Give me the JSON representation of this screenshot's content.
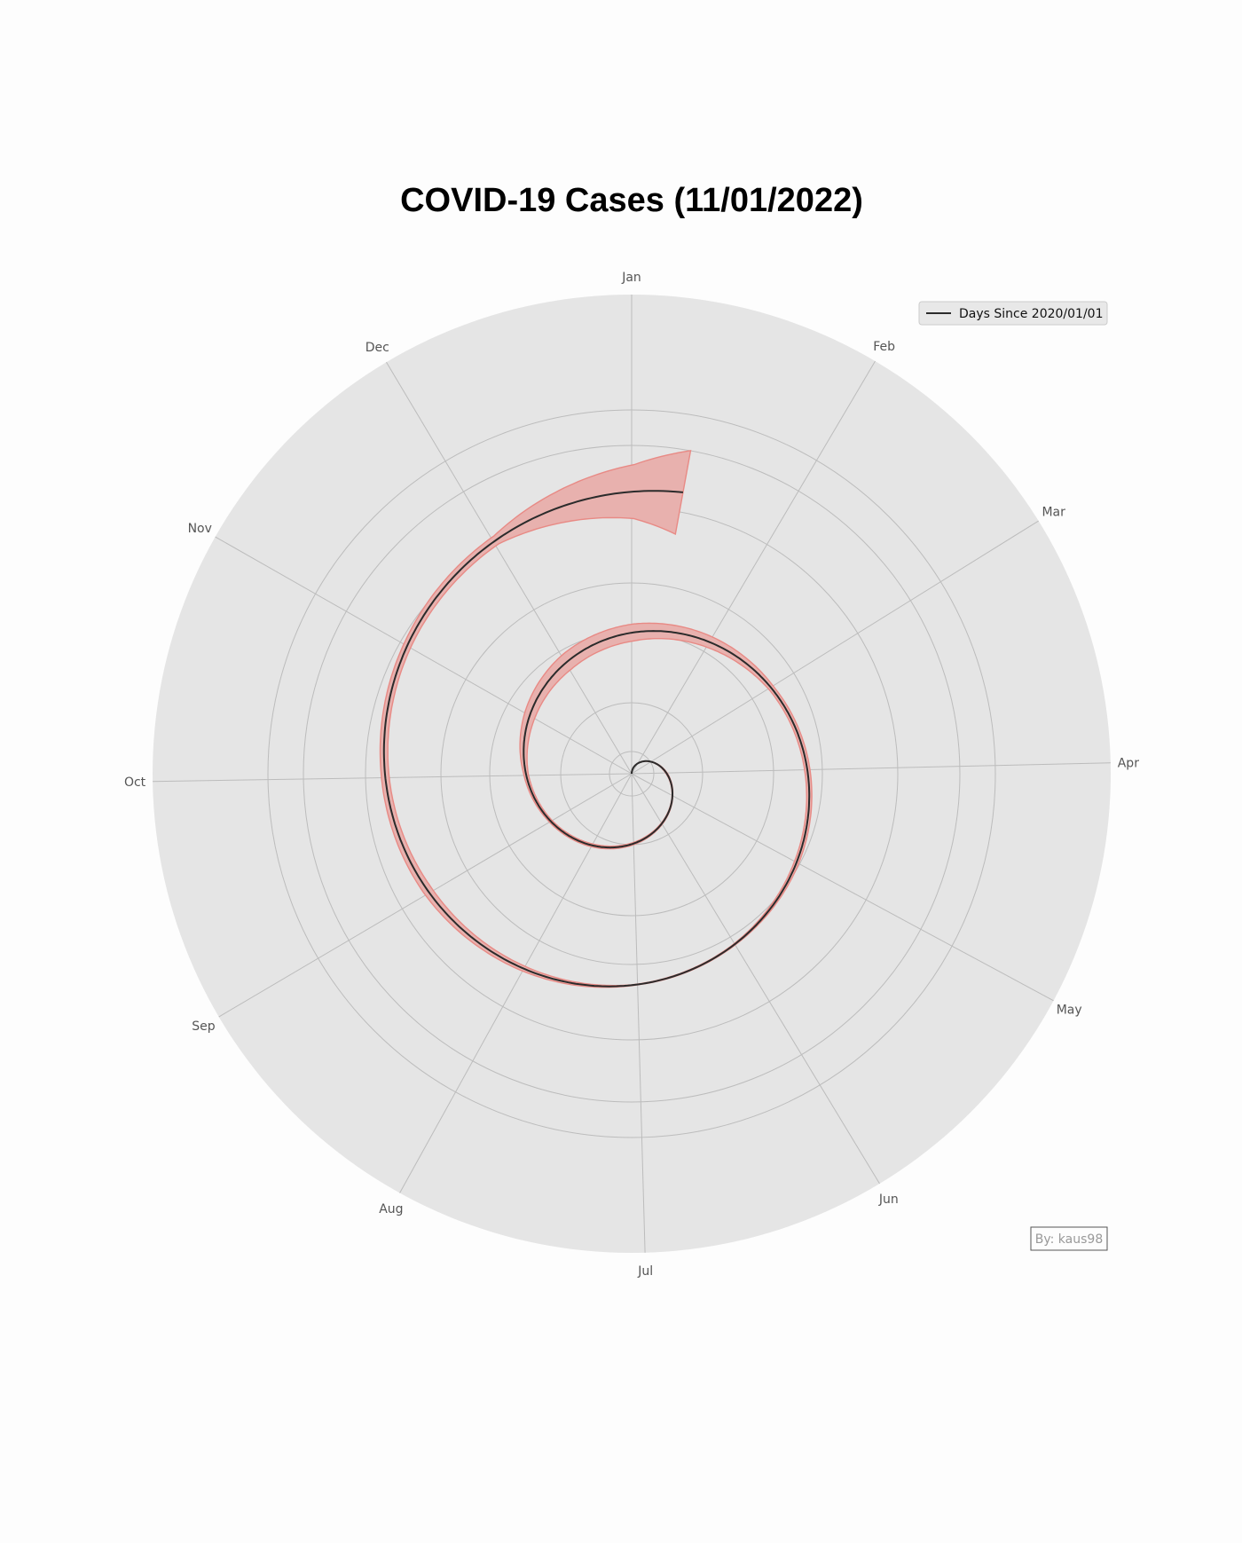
{
  "chart_data": {
    "type": "line",
    "projection": "polar-spiral",
    "title": "COVID-19 Cases (11/01/2022)",
    "angular_axis": {
      "labels": [
        "Jan",
        "Feb",
        "Mar",
        "Apr",
        "May",
        "Jun",
        "Jul",
        "Aug",
        "Sep",
        "Oct",
        "Nov",
        "Dec"
      ],
      "direction": "clockwise",
      "start": "Jan at top"
    },
    "radial_axis": {
      "tick_labels_shown": false,
      "grid": true
    },
    "series": [
      {
        "name": "Days Since 2020/01/01",
        "kind": "line",
        "color": "#2b2b2b",
        "points": [
          {
            "x": "2020-01-01",
            "y": 0
          },
          {
            "x": "2020-02-01",
            "y": 31
          },
          {
            "x": "2020-03-01",
            "y": 60
          },
          {
            "x": "2020-04-01",
            "y": 91
          },
          {
            "x": "2020-05-01",
            "y": 121
          },
          {
            "x": "2020-06-01",
            "y": 152
          },
          {
            "x": "2020-07-01",
            "y": 182
          },
          {
            "x": "2020-08-01",
            "y": 213
          },
          {
            "x": "2020-09-01",
            "y": 244
          },
          {
            "x": "2020-10-01",
            "y": 274
          },
          {
            "x": "2020-11-01",
            "y": 305
          },
          {
            "x": "2020-12-01",
            "y": 335
          },
          {
            "x": "2021-01-01",
            "y": 366
          },
          {
            "x": "2021-02-01",
            "y": 397
          },
          {
            "x": "2021-03-01",
            "y": 425
          },
          {
            "x": "2021-04-01",
            "y": 456
          },
          {
            "x": "2021-05-01",
            "y": 486
          },
          {
            "x": "2021-06-01",
            "y": 517
          },
          {
            "x": "2021-07-01",
            "y": 547
          },
          {
            "x": "2021-08-01",
            "y": 578
          },
          {
            "x": "2021-09-01",
            "y": 609
          },
          {
            "x": "2021-10-01",
            "y": 639
          },
          {
            "x": "2021-11-01",
            "y": 670
          },
          {
            "x": "2021-12-01",
            "y": 700
          },
          {
            "x": "2022-01-01",
            "y": 731
          },
          {
            "x": "2022-01-11",
            "y": 741
          }
        ]
      },
      {
        "kind": "band",
        "color": "#e88a85",
        "fill": "#e8b1ae",
        "unit": "days",
        "half_width": [
          {
            "x": "2020-01-01",
            "y": 0
          },
          {
            "x": "2020-03-01",
            "y": 0.5
          },
          {
            "x": "2020-04-01",
            "y": 2
          },
          {
            "x": "2020-05-01",
            "y": 1
          },
          {
            "x": "2020-06-01",
            "y": 2
          },
          {
            "x": "2020-07-01",
            "y": 3
          },
          {
            "x": "2020-08-01",
            "y": 4
          },
          {
            "x": "2020-09-01",
            "y": 4
          },
          {
            "x": "2020-10-01",
            "y": 6
          },
          {
            "x": "2020-11-01",
            "y": 15
          },
          {
            "x": "2020-12-01",
            "y": 22
          },
          {
            "x": "2021-01-01",
            "y": 22
          },
          {
            "x": "2021-02-01",
            "y": 15
          },
          {
            "x": "2021-03-01",
            "y": 7
          },
          {
            "x": "2021-04-01",
            "y": 7
          },
          {
            "x": "2021-05-01",
            "y": 6
          },
          {
            "x": "2021-06-01",
            "y": 2
          },
          {
            "x": "2021-07-01",
            "y": 1
          },
          {
            "x": "2021-08-01",
            "y": 7
          },
          {
            "x": "2021-09-01",
            "y": 12
          },
          {
            "x": "2021-10-01",
            "y": 10
          },
          {
            "x": "2021-11-01",
            "y": 10
          },
          {
            "x": "2021-12-01",
            "y": 12
          },
          {
            "x": "2022-01-01",
            "y": 70
          },
          {
            "x": "2022-01-11",
            "y": 110
          }
        ]
      }
    ],
    "legend": {
      "position": "top-right",
      "entries": [
        "Days Since 2020/01/01"
      ]
    },
    "annotation": "By: kaus98",
    "colors": {
      "axes_background": "#e5e5e5",
      "grid": "#bcbcbc",
      "line": "#2b2b2b",
      "band_fill": "#e8b1ae",
      "band_edge": "#e88a85"
    }
  }
}
